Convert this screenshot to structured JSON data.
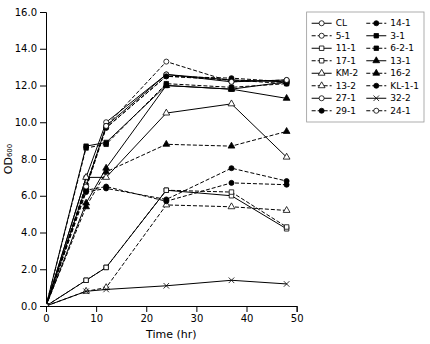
{
  "chart_data": {
    "type": "line",
    "x": [
      0,
      8,
      12,
      24,
      37,
      48
    ],
    "series": [
      {
        "name": "CL",
        "color": "black",
        "line_style": "solid",
        "marker": "circle-open",
        "values": [
          0,
          7.0,
          10.0,
          12.6,
          12.2,
          12.3
        ]
      },
      {
        "name": "5-1",
        "color": "black",
        "line_style": "dashed",
        "marker": "circle-open",
        "values": [
          0,
          6.6,
          9.7,
          12.5,
          12.3,
          12.1
        ]
      },
      {
        "name": "11-1",
        "color": "black",
        "line_style": "solid",
        "marker": "square-open",
        "values": [
          0,
          1.4,
          2.1,
          6.3,
          6.0,
          4.2
        ]
      },
      {
        "name": "17-1",
        "color": "black",
        "line_style": "dashed",
        "marker": "square-open",
        "values": [
          0,
          1.4,
          2.1,
          6.3,
          6.2,
          4.3
        ]
      },
      {
        "name": "KM-2",
        "color": "black",
        "line_style": "solid",
        "marker": "triangle-open",
        "values": [
          0,
          7.0,
          7.0,
          10.5,
          11.0,
          8.1
        ]
      },
      {
        "name": "13-2",
        "color": "black",
        "line_style": "dashed",
        "marker": "triangle-open",
        "values": [
          0,
          0.8,
          1.0,
          5.5,
          5.4,
          5.2
        ]
      },
      {
        "name": "27-1",
        "color": "black",
        "line_style": "solid",
        "marker": "circle-open",
        "values": [
          0,
          6.5,
          9.8,
          12.6,
          12.3,
          12.2
        ]
      },
      {
        "name": "29-1",
        "color": "black",
        "line_style": "dashed",
        "marker": "circle",
        "values": [
          0,
          6.4,
          9.7,
          12.5,
          12.4,
          12.2
        ]
      },
      {
        "name": "14-1",
        "color": "black",
        "line_style": "dashed",
        "marker": "circle",
        "values": [
          0,
          6.3,
          6.5,
          5.7,
          6.7,
          6.6
        ]
      },
      {
        "name": "3-1",
        "color": "black",
        "line_style": "solid",
        "marker": "square",
        "values": [
          0,
          8.7,
          8.9,
          12.0,
          11.8,
          12.2
        ]
      },
      {
        "name": "6-2-1",
        "color": "black",
        "line_style": "dashed",
        "marker": "square",
        "values": [
          0,
          8.6,
          8.8,
          12.1,
          11.9,
          12.1
        ]
      },
      {
        "name": "13-1",
        "color": "black",
        "line_style": "solid",
        "marker": "triangle",
        "values": [
          0,
          5.6,
          7.5,
          12.0,
          11.8,
          11.3
        ]
      },
      {
        "name": "16-2",
        "color": "black",
        "line_style": "dashed",
        "marker": "triangle",
        "values": [
          0,
          5.4,
          7.3,
          8.8,
          8.7,
          9.5
        ]
      },
      {
        "name": "KL-1-1",
        "color": "black",
        "line_style": "dashed",
        "marker": "circle",
        "values": [
          0,
          6.2,
          6.4,
          5.8,
          7.5,
          6.8
        ]
      },
      {
        "name": "32-2",
        "color": "black",
        "line_style": "solid",
        "marker": "x",
        "values": [
          0,
          0.8,
          0.9,
          1.1,
          1.4,
          1.2
        ]
      },
      {
        "name": "24-1",
        "color": "black",
        "line_style": "dashed",
        "marker": "circle-open",
        "values": [
          0,
          6.5,
          9.8,
          13.3,
          12.2,
          12.3
        ]
      }
    ],
    "xlabel": "Time (hr)",
    "ylabel": "OD₆₀₀",
    "xlim": [
      0,
      50
    ],
    "ylim": [
      0,
      16.0
    ],
    "xticks": [
      0,
      10,
      20,
      30,
      40,
      50
    ],
    "yticks": [
      {
        "value": 0.0,
        "label": "0.0"
      },
      {
        "value": 2.0,
        "label": "2.0"
      },
      {
        "value": 4.0,
        "label": "4.0"
      },
      {
        "value": 6.0,
        "label": "6.0"
      },
      {
        "value": 8.0,
        "label": "8.0"
      },
      {
        "value": 10.0,
        "label": "10.0"
      },
      {
        "value": 12.0,
        "label": "12.0"
      },
      {
        "value": 14.0,
        "label": "14.0"
      },
      {
        "value": 16.0,
        "label": "16.0"
      }
    ],
    "grid": false,
    "legend": "right"
  }
}
